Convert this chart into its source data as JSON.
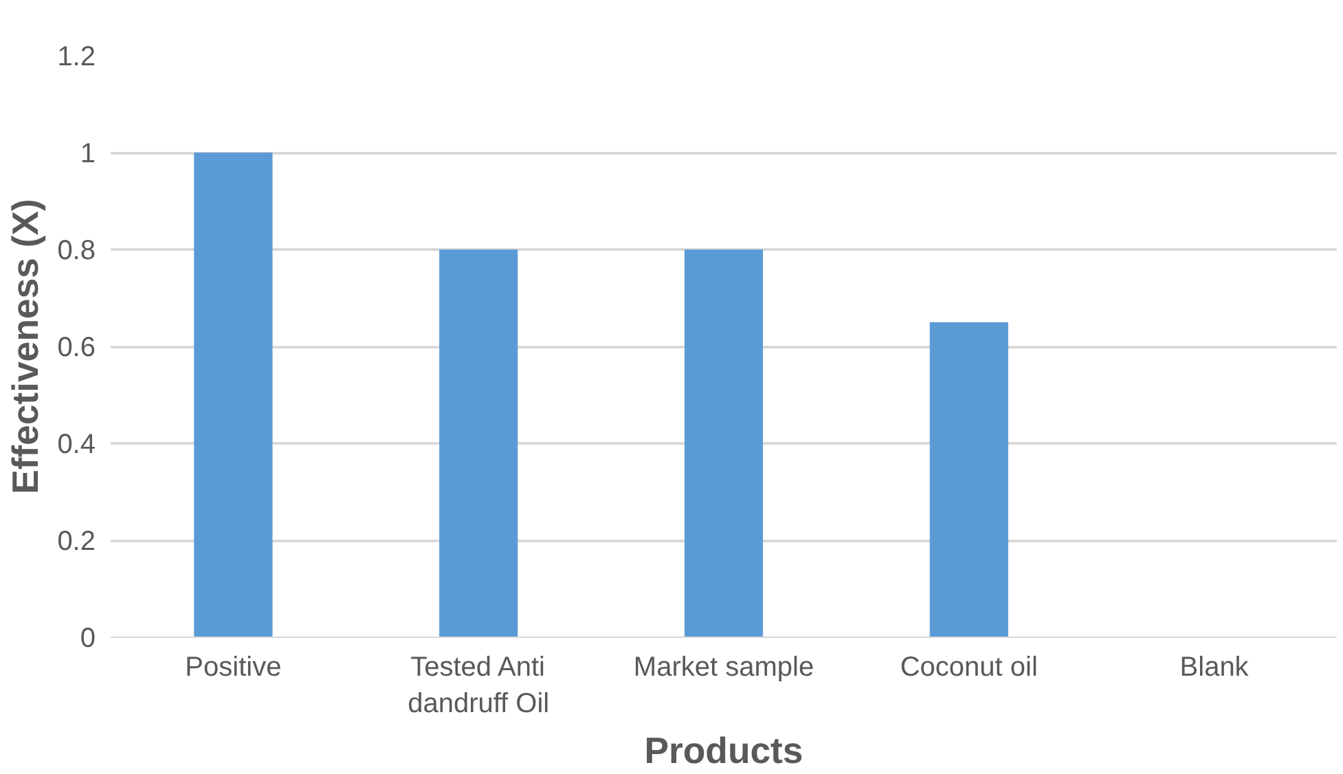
{
  "chart_data": {
    "type": "bar",
    "xlabel": "Products",
    "ylabel": "Effectiveness (X)",
    "categories": [
      "Positive",
      "Tested Anti dandruff Oil",
      "Market sample",
      "Coconut oil",
      "Blank"
    ],
    "values": [
      1,
      0.8,
      0.8,
      0.65,
      0
    ],
    "color": "#5b9bd5",
    "ylim": [
      0,
      1.2
    ],
    "yticks": [
      0,
      0.2,
      0.4,
      0.6,
      0.8,
      1,
      1.2
    ],
    "grid": "y"
  }
}
